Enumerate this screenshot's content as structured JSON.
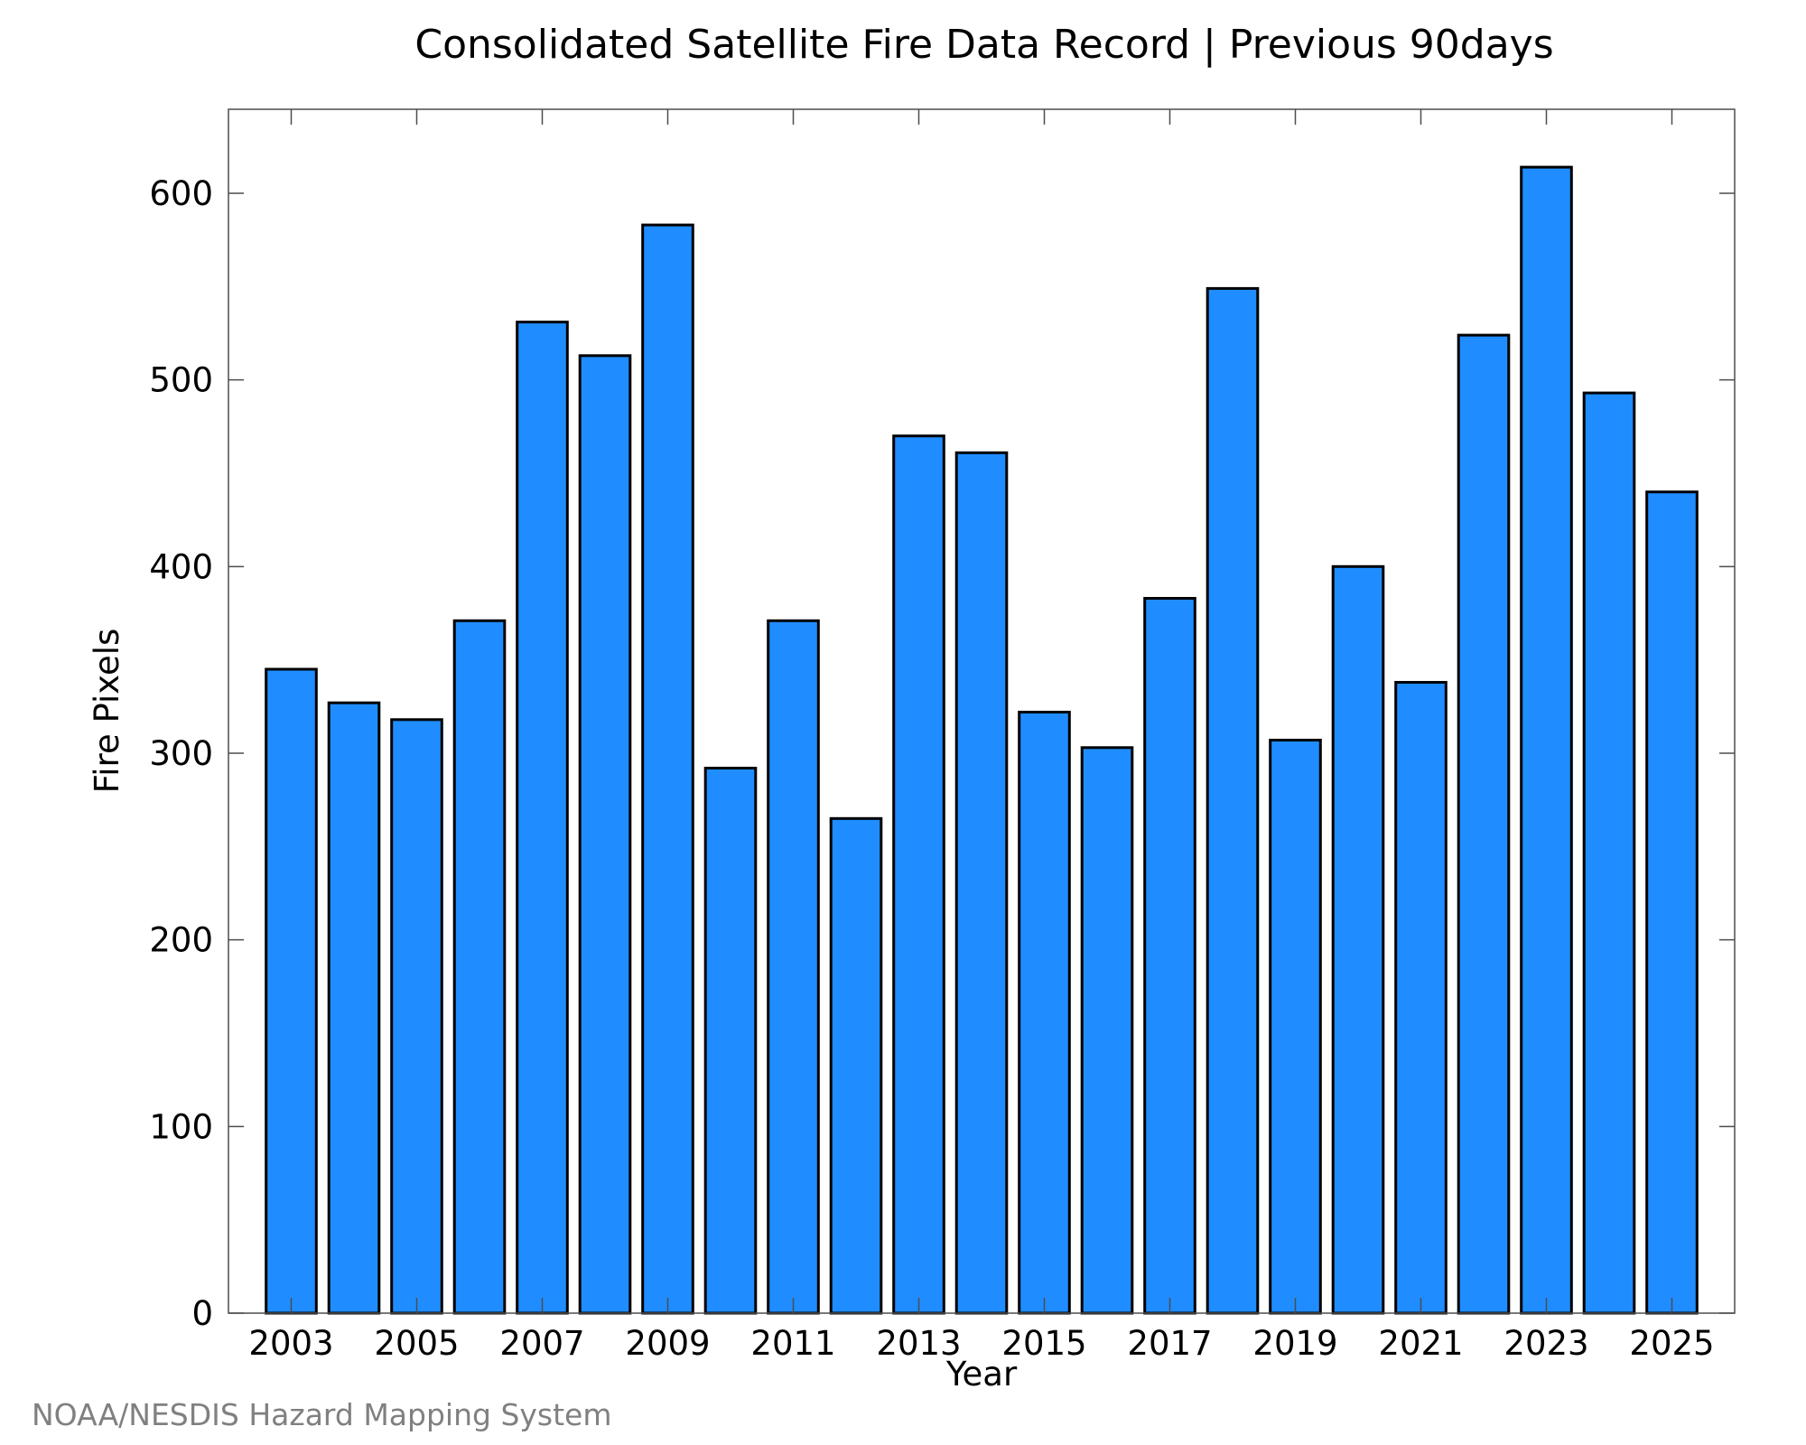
{
  "chart_data": {
    "type": "bar",
    "title": "Consolidated Satellite Fire Data Record | Previous 90days",
    "xlabel": "Year",
    "ylabel": "Fire Pixels",
    "credit": "NOAA/NESDIS Hazard Mapping System",
    "bar_color": "#1f8dff",
    "bar_edge_color": "#000000",
    "ylim": [
      0,
      645
    ],
    "yticks": [
      0,
      100,
      200,
      300,
      400,
      500,
      600
    ],
    "xlim": [
      2002,
      2026
    ],
    "xticks": [
      2003,
      2005,
      2007,
      2009,
      2011,
      2013,
      2015,
      2017,
      2019,
      2021,
      2023,
      2025
    ],
    "bar_width": 0.8,
    "grid": false,
    "categories": [
      2003,
      2004,
      2005,
      2006,
      2007,
      2008,
      2009,
      2010,
      2011,
      2012,
      2013,
      2014,
      2015,
      2016,
      2017,
      2018,
      2019,
      2020,
      2021,
      2022,
      2023,
      2024,
      2025
    ],
    "values": [
      345,
      327,
      318,
      371,
      531,
      513,
      583,
      292,
      371,
      265,
      470,
      461,
      322,
      303,
      383,
      549,
      307,
      400,
      338,
      524,
      614,
      493,
      440
    ]
  }
}
